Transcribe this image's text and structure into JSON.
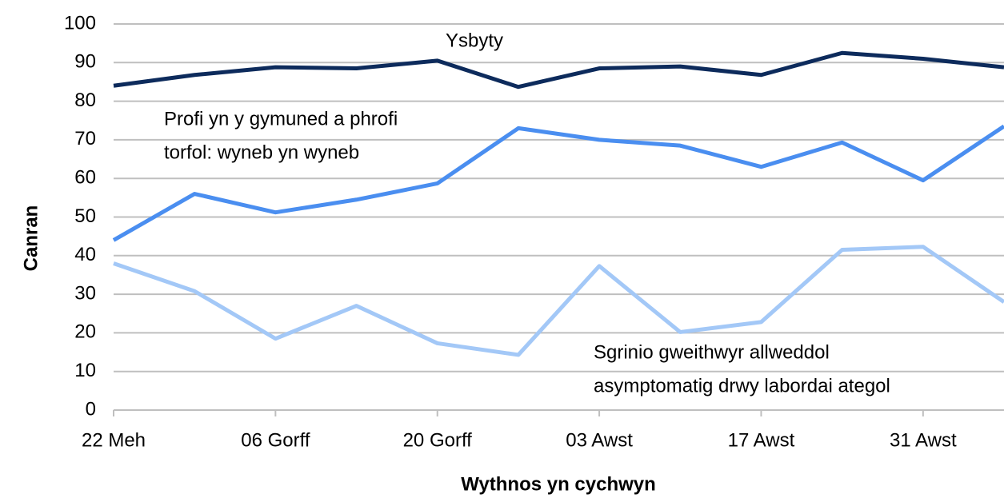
{
  "chart_data": {
    "type": "line",
    "categories": [
      "22 Meh",
      null,
      "06 Gorff",
      null,
      "20 Gorff",
      null,
      "03 Awst",
      null,
      "17 Awst",
      null,
      "31 Awst",
      null
    ],
    "series": [
      {
        "name": [
          "Ysbyty"
        ],
        "color": "#0d2b5c",
        "values": [
          84,
          86.8,
          88.8,
          88.5,
          90.5,
          83.7,
          88.5,
          89,
          86.8,
          92.5,
          91,
          88.8
        ]
      },
      {
        "name": [
          "Profi yn y gymuned a phrofi",
          "torfol: wyneb yn wyneb"
        ],
        "color": "#4a8ef0",
        "values": [
          44,
          56,
          51.2,
          54.5,
          58.7,
          73,
          70,
          68.5,
          63,
          69.3,
          59.5,
          73.5
        ]
      },
      {
        "name": [
          "Sgrinio gweithwyr allweddol",
          "asymptomatig drwy labordai ategol"
        ],
        "color": "#a3c8f7",
        "values": [
          38,
          30.8,
          18.5,
          27,
          17.3,
          14.3,
          37.3,
          20.2,
          22.8,
          41.5,
          42.3,
          28
        ]
      }
    ],
    "ylabel": "Canran",
    "xlabel": "Wythnos yn cychwyn",
    "ylim": [
      0,
      100
    ],
    "yticks": [
      0,
      10,
      20,
      30,
      40,
      50,
      60,
      70,
      80,
      90,
      100
    ],
    "grid": true
  }
}
